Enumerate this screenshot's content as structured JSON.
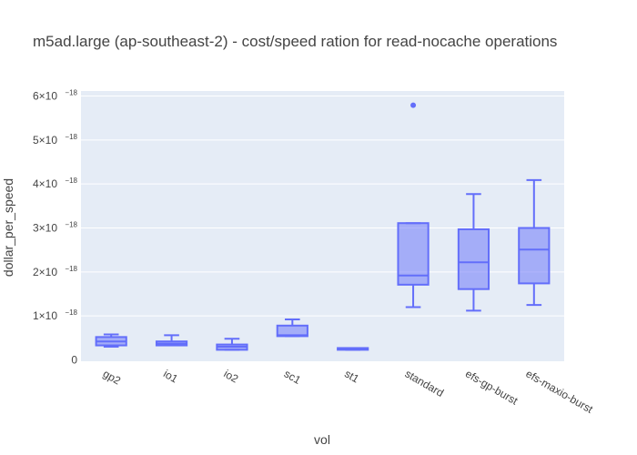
{
  "chart_data": {
    "type": "box",
    "title": "m5ad.large (ap-southeast-2) - cost/speed ration for read-nocache operations",
    "xlabel": "vol",
    "ylabel": "dollar_per_speed",
    "categories": [
      "gp2",
      "io1",
      "io2",
      "sc1",
      "st1",
      "standard",
      "efs-gp-burst",
      "efs-maxio-burst"
    ],
    "y_exponent_label": "−18",
    "ylim": [
      0,
      6.2
    ],
    "y_scale": 1e-18,
    "yticks": [
      0,
      1,
      2,
      3,
      4,
      5,
      6
    ],
    "ytick_labels": [
      "0",
      "1×10",
      "2×10",
      "3×10",
      "4×10",
      "5×10",
      "6×10"
    ],
    "grid": true,
    "boxes": [
      {
        "category": "gp2",
        "min": 0.3,
        "q1": 0.33,
        "median": 0.42,
        "q3": 0.52,
        "max": 0.58,
        "outliers": []
      },
      {
        "category": "io1",
        "min": 0.33,
        "q1": 0.33,
        "median": 0.37,
        "q3": 0.42,
        "max": 0.56,
        "outliers": []
      },
      {
        "category": "io2",
        "min": 0.23,
        "q1": 0.23,
        "median": 0.3,
        "q3": 0.35,
        "max": 0.48,
        "outliers": []
      },
      {
        "category": "sc1",
        "min": 0.54,
        "q1": 0.54,
        "median": 0.56,
        "q3": 0.78,
        "max": 0.92,
        "outliers": []
      },
      {
        "category": "st1",
        "min": 0.23,
        "q1": 0.23,
        "median": 0.25,
        "q3": 0.27,
        "max": 0.27,
        "outliers": []
      },
      {
        "category": "standard",
        "min": 1.2,
        "q1": 1.71,
        "median": 1.92,
        "q3": 3.11,
        "max": 3.11,
        "outliers": [
          5.79
        ]
      },
      {
        "category": "efs-gp-burst",
        "min": 1.12,
        "q1": 1.61,
        "median": 2.22,
        "q3": 2.97,
        "max": 3.77,
        "outliers": []
      },
      {
        "category": "efs-maxio-burst",
        "min": 1.25,
        "q1": 1.74,
        "median": 2.51,
        "q3": 3.0,
        "max": 4.09,
        "outliers": []
      }
    ],
    "colors": {
      "plot_bg": "#e5ecf6",
      "grid": "#ffffff",
      "box_line": "#636efa",
      "box_fill": "rgba(99,110,250,0.5)"
    }
  }
}
